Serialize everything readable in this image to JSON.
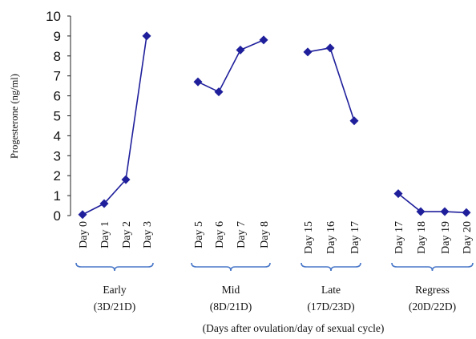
{
  "chart_data": {
    "type": "line",
    "title": "",
    "ylabel": "Progesterone (ng/ml)",
    "xlabel": "(Days after ovulation/day of sexual cycle)",
    "ylim": [
      0,
      10
    ],
    "yticks": [
      0,
      1,
      2,
      3,
      4,
      5,
      6,
      7,
      8,
      9,
      10
    ],
    "grid": false,
    "legend": "none",
    "colors": {
      "series": "#1f1f9c",
      "brace": "#4a78c8"
    },
    "groups": [
      {
        "name": "Early",
        "subtitle": "(3D/21D)",
        "points": [
          {
            "label": "Day 0",
            "value": 0.05
          },
          {
            "label": "Day 1",
            "value": 0.6
          },
          {
            "label": "Day 2",
            "value": 1.8
          },
          {
            "label": "Day 3",
            "value": 9.0
          }
        ]
      },
      {
        "name": "Mid",
        "subtitle": "(8D/21D)",
        "points": [
          {
            "label": "Day 5",
            "value": 6.7
          },
          {
            "label": "Day 6",
            "value": 6.2
          },
          {
            "label": "Day 7",
            "value": 8.3
          },
          {
            "label": "Day 8",
            "value": 8.8
          }
        ]
      },
      {
        "name": "Late",
        "subtitle": "(17D/23D)",
        "points": [
          {
            "label": "Day 15",
            "value": 8.2
          },
          {
            "label": "Day 16",
            "value": 8.4
          },
          {
            "label": "Day 17",
            "value": 4.75
          }
        ]
      },
      {
        "name": "Regress",
        "subtitle": "(20D/22D)",
        "points": [
          {
            "label": "Day 17",
            "value": 1.1
          },
          {
            "label": "Day 18",
            "value": 0.2
          },
          {
            "label": "Day 19",
            "value": 0.2
          },
          {
            "label": "Day 20",
            "value": 0.15
          }
        ]
      }
    ]
  }
}
